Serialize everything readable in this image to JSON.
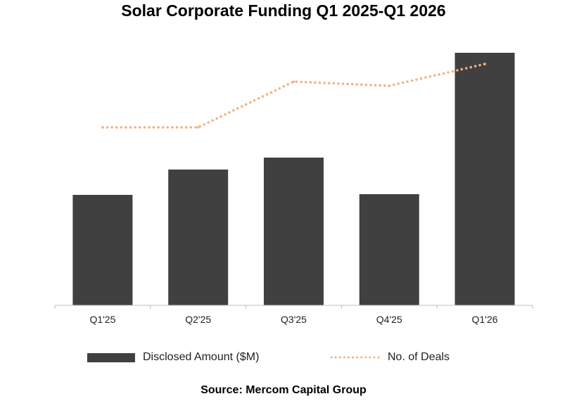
{
  "chart_data": {
    "type": "bar",
    "title": "Solar Corporate Funding Q1 2025-Q1 2026",
    "xlabel": "",
    "ylabel": "",
    "categories": [
      "Q1'25",
      "Q2'25",
      "Q3'25",
      "Q4'25",
      "Q1'26"
    ],
    "series": [
      {
        "name": "Disclosed Amount ($M)",
        "type": "bar",
        "color": "#404040",
        "values": [
          1.57,
          1.93,
          2.1,
          1.58,
          3.59
        ]
      },
      {
        "name": "No. of Deals",
        "type": "line",
        "style": "dotted",
        "color": "#f4b183",
        "values": [
          2.53,
          2.53,
          3.18,
          3.12,
          3.43
        ]
      }
    ],
    "ylim": [
      0,
      3.6
    ],
    "y_axis_visible": false,
    "grid": false,
    "legend_position": "bottom",
    "source": "Source: Mercom Capital Group"
  }
}
